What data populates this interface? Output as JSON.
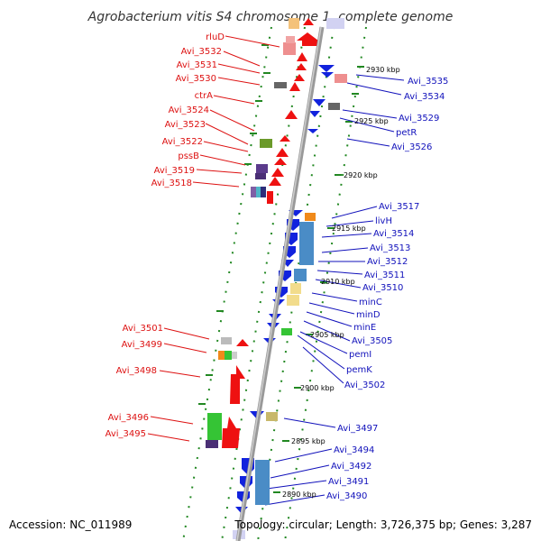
{
  "title": "Agrobacterium vitis S4 chromosome 1, complete genome",
  "footer": {
    "accession": "Accession: NC_011989",
    "summary": "Topology: circular; Length: 3,726,375 bp; Genes: 3,287"
  },
  "colors": {
    "forward": "#ee1111",
    "reverse": "#1122dd",
    "backbone": "#999999",
    "ticks": "#228822",
    "label_forward": "#dd1111",
    "label_reverse": "#1111bb"
  },
  "left_labels": [
    "rluD",
    "Avi_3532",
    "Avi_3531",
    "Avi_3530",
    "ctrA",
    "Avi_3524",
    "Avi_3523",
    "Avi_3522",
    "pssB",
    "Avi_3519",
    "Avi_3518",
    "Avi_3501",
    "Avi_3499",
    "Avi_3498",
    "Avi_3496",
    "Avi_3495"
  ],
  "right_labels": [
    "Avi_3535",
    "Avi_3534",
    "Avi_3529",
    "petR",
    "Avi_3526",
    "Avi_3517",
    "livH",
    "Avi_3514",
    "Avi_3513",
    "Avi_3512",
    "Avi_3511",
    "Avi_3510",
    "minC",
    "minD",
    "minE",
    "Avi_3505",
    "pemI",
    "pemK",
    "Avi_3502",
    "Avi_3497",
    "Avi_3494",
    "Avi_3492",
    "Avi_3491",
    "Avi_3490"
  ],
  "kbp_labels": [
    "2930 kbp",
    "2925 kbp",
    "2920 kbp",
    "2915 kbp",
    "2910 kbp",
    "2905 kbp",
    "2900 kbp",
    "2895 kbp",
    "2890 kbp"
  ]
}
